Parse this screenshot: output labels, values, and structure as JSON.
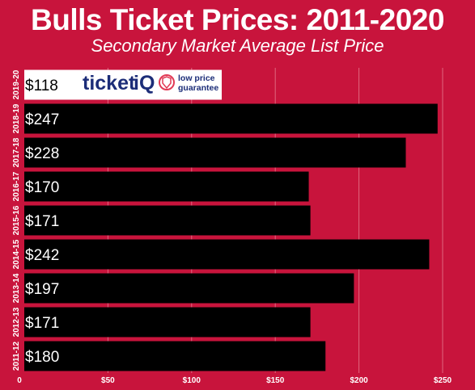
{
  "header": {
    "title": "Bulls Ticket Prices: 2011-2020",
    "subtitle": "Secondary Market Average List Price"
  },
  "logo": {
    "brand_main": "ticket",
    "brand_accent": "iQ",
    "tagline_line1": "low price",
    "tagline_line2": "guarantee",
    "brand_color": "#1c2d78"
  },
  "colors": {
    "background": "#c8143c",
    "bar": "#000000",
    "highlight_bar": "#ffffff",
    "grid": "#e0677f",
    "text": "#ffffff"
  },
  "chart_data": {
    "type": "bar",
    "orientation": "horizontal",
    "categories": [
      "2019-20",
      "2018-19",
      "2017-18",
      "2016-17",
      "2015-16",
      "2014-15",
      "2013-14",
      "2012-13",
      "2011-12"
    ],
    "values": [
      118,
      247,
      228,
      170,
      171,
      242,
      197,
      171,
      180
    ],
    "data_labels": [
      "$118",
      "$247",
      "$228",
      "$170",
      "$171",
      "$242",
      "$197",
      "$171",
      "$180"
    ],
    "highlight_index": 0,
    "title": "Bulls Ticket Prices: 2011-2020",
    "subtitle": "Secondary Market Average List Price",
    "xlim": [
      0,
      265
    ],
    "x_ticks": [
      0,
      50,
      100,
      150,
      200,
      250
    ],
    "x_tick_labels": [
      "0",
      "$50",
      "$100",
      "$150",
      "$200",
      "$250"
    ],
    "grid": true
  }
}
